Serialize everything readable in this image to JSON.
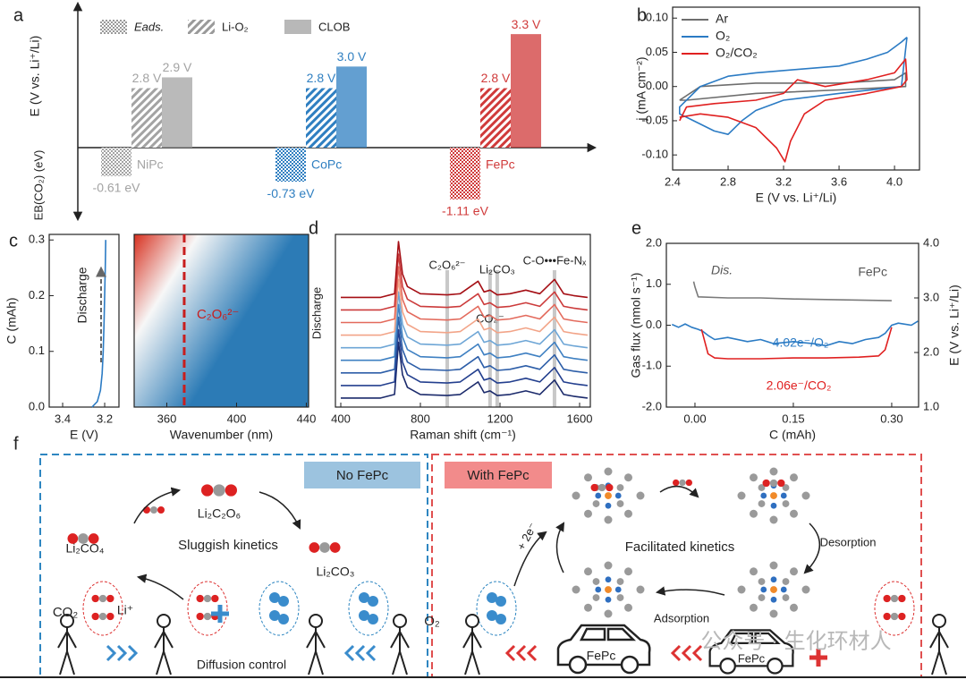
{
  "chart_data": [
    {
      "label": "a",
      "type": "bar",
      "categories": [
        "NiPc",
        "CoPc",
        "FePc"
      ],
      "colors": [
        "#a3a3a3",
        "#2f7fc1",
        "#d03a3a"
      ],
      "series": [
        {
          "name": "Eads.",
          "pattern": "checker",
          "axis": "y2",
          "values": [
            -0.61,
            -0.73,
            -1.11
          ],
          "value_labels": [
            "-0.61 eV",
            "-0.73 eV",
            "-1.11 eV"
          ]
        },
        {
          "name": "Li-O₂",
          "pattern": "hatch",
          "values": [
            2.8,
            2.8,
            2.8
          ],
          "value_labels": [
            "2.8 V",
            "2.8 V",
            "2.8 V"
          ]
        },
        {
          "name": "CLOB",
          "pattern": "solid",
          "values": [
            2.9,
            3.0,
            3.3
          ],
          "value_labels": [
            "2.9 V",
            "3.0 V",
            "3.3 V"
          ]
        }
      ],
      "ylim": [
        2.25,
        3.45
      ],
      "y2lim": [
        -1.4,
        0
      ],
      "ylabel": "E (V vs. Li⁺/Li)",
      "y2label": "EB(CO₂) (eV)"
    },
    {
      "label": "b",
      "type": "line",
      "legend": "upper left",
      "series": [
        {
          "name": "Ar",
          "color": "#6e6e6e",
          "x": [
            2.45,
            2.6,
            3.0,
            3.6,
            4.0,
            4.08,
            4.08,
            3.6,
            3.0,
            2.5,
            2.45
          ],
          "values": [
            -0.02,
            0.0,
            0.005,
            0.005,
            0.01,
            0.02,
            0.0,
            -0.005,
            -0.01,
            -0.02,
            -0.02
          ]
        },
        {
          "name": "O₂",
          "color": "#2b7bc4",
          "x": [
            4.09,
            4.05,
            3.6,
            3.2,
            3.0,
            2.9,
            2.8,
            2.7,
            2.55,
            2.45,
            2.45,
            2.6,
            2.8,
            3.0,
            3.3,
            3.6,
            3.8,
            3.95,
            4.05,
            4.09
          ],
          "values": [
            0.072,
            0.0,
            -0.01,
            -0.02,
            -0.035,
            -0.05,
            -0.07,
            -0.065,
            -0.05,
            -0.04,
            -0.03,
            0.0,
            0.015,
            0.02,
            0.025,
            0.03,
            0.04,
            0.05,
            0.065,
            0.072
          ]
        },
        {
          "name": "O₂/CO₂",
          "color": "#e02020",
          "x": [
            2.45,
            2.5,
            2.7,
            3.0,
            3.2,
            3.3,
            3.5,
            3.8,
            4.0,
            4.08,
            4.09,
            4.05,
            3.8,
            3.5,
            3.35,
            3.25,
            3.21,
            3.15,
            3.0,
            2.8,
            2.6,
            2.45
          ],
          "values": [
            -0.05,
            -0.03,
            -0.025,
            -0.02,
            -0.01,
            0.01,
            0.0,
            0.01,
            0.02,
            0.04,
            0.01,
            0.0,
            -0.01,
            -0.02,
            -0.04,
            -0.08,
            -0.11,
            -0.09,
            -0.06,
            -0.045,
            -0.04,
            -0.045
          ]
        }
      ],
      "xlim": [
        2.4,
        4.18
      ],
      "ylim": [
        -0.122,
        0.116
      ],
      "xticks": [
        2.4,
        2.8,
        3.2,
        3.6,
        {
          "value": 4,
          "label": "4.0"
        }
      ],
      "yticks": [
        {
          "value": -0.1,
          "label": "-0.10"
        },
        {
          "value": -0.05,
          "label": "-0.05"
        },
        {
          "value": 0,
          "label": "0.00"
        },
        {
          "value": 0.05,
          "label": "0.05"
        },
        {
          "value": 0.1,
          "label": "0.10"
        }
      ],
      "xlabel": "E (V vs. Li⁺/Li)",
      "ylabel": "j (mA cm⁻²)"
    },
    {
      "label": "c",
      "type": "line",
      "series": [
        {
          "color": "#2b7bc4",
          "x": [
            3.26,
            3.235,
            3.22,
            3.212,
            3.207,
            3.203,
            3.2,
            3.197,
            3.195
          ],
          "values": [
            0,
            0.01,
            0.03,
            0.06,
            0.1,
            0.15,
            0.2,
            0.25,
            0.3
          ]
        }
      ],
      "xlim": [
        3.464,
        3.132
      ],
      "ylim": [
        0,
        0.31
      ],
      "xticks": [
        3.4,
        3.2
      ],
      "yticks": [
        {
          "value": 0,
          "label": "0.0"
        },
        0.1,
        0.2,
        0.3
      ],
      "xlabel": "E (V)",
      "ylabel": "C (mAh)",
      "annotations": [
        {
          "text": "Discharge",
          "color": "#222222"
        }
      ]
    },
    {
      "type": "heatmap",
      "colors": [
        "#d7301f",
        "#f7f7f7",
        "#2c7bb6"
      ],
      "xlim": [
        341.3,
        441.3
      ],
      "xticks": [
        360,
        400,
        440
      ],
      "xlabel": "Wavenumber (nm)",
      "marker": 370,
      "annotation": "C₂O₆²⁻"
    },
    {
      "label": "d",
      "type": "line",
      "x": [
        400,
        600,
        670,
        690,
        710,
        735,
        800,
        935,
        1000,
        1090,
        1120,
        1150,
        1186,
        1250,
        1330,
        1400,
        1474,
        1520,
        1570,
        1640
      ],
      "series": [
        {
          "color": "#1b2a6b",
          "values": [
            0.05,
            0.05,
            0.15,
            1.6,
            0.7,
            0.35,
            0.15,
            0.12,
            0.15,
            0.5,
            0.2,
            0.25,
            0.12,
            0.15,
            0.25,
            0.15,
            0.55,
            0.15,
            0.1,
            0.05
          ]
        },
        {
          "color": "#233f8e",
          "values": [
            0.4,
            0.4,
            0.5,
            1.95,
            1.05,
            0.7,
            0.5,
            0.47,
            0.5,
            0.85,
            0.55,
            0.6,
            0.47,
            0.5,
            0.6,
            0.5,
            0.9,
            0.5,
            0.45,
            0.4
          ]
        },
        {
          "color": "#2d5ea8",
          "values": [
            0.75,
            0.75,
            0.85,
            2.3,
            1.4,
            1.05,
            0.85,
            0.82,
            0.85,
            1.2,
            0.9,
            0.95,
            0.82,
            0.85,
            0.95,
            0.85,
            1.25,
            0.85,
            0.8,
            0.75
          ]
        },
        {
          "color": "#3f80c2",
          "values": [
            1.1,
            1.1,
            1.2,
            2.65,
            1.75,
            1.4,
            1.2,
            1.17,
            1.2,
            1.55,
            1.25,
            1.3,
            1.17,
            1.2,
            1.3,
            1.2,
            1.6,
            1.2,
            1.15,
            1.1
          ]
        },
        {
          "color": "#6ea6d6",
          "values": [
            1.45,
            1.45,
            1.55,
            3.0,
            2.1,
            1.75,
            1.55,
            1.52,
            1.55,
            1.9,
            1.6,
            1.65,
            1.52,
            1.55,
            1.65,
            1.55,
            1.95,
            1.55,
            1.5,
            1.45
          ]
        },
        {
          "color": "#f2a488",
          "values": [
            1.8,
            1.8,
            1.9,
            3.35,
            2.45,
            2.1,
            1.9,
            1.87,
            1.9,
            2.25,
            1.95,
            2.0,
            1.87,
            1.9,
            2.0,
            1.9,
            2.3,
            1.9,
            1.85,
            1.8
          ]
        },
        {
          "color": "#e36a5c",
          "values": [
            2.15,
            2.15,
            2.25,
            3.7,
            2.8,
            2.45,
            2.25,
            2.22,
            2.25,
            2.6,
            2.3,
            2.35,
            2.22,
            2.25,
            2.35,
            2.25,
            2.65,
            2.25,
            2.2,
            2.15
          ]
        },
        {
          "color": "#cc3b3b",
          "values": [
            2.5,
            2.5,
            2.6,
            4.05,
            3.15,
            2.8,
            2.6,
            2.57,
            2.6,
            2.95,
            2.65,
            2.7,
            2.57,
            2.6,
            2.7,
            2.6,
            3.0,
            2.6,
            2.55,
            2.5
          ]
        },
        {
          "color": "#a50f15",
          "values": [
            2.85,
            2.85,
            2.95,
            4.4,
            3.5,
            3.15,
            2.95,
            2.92,
            2.95,
            3.3,
            3.0,
            3.05,
            2.92,
            2.95,
            3.05,
            2.95,
            3.35,
            2.95,
            2.9,
            2.85
          ]
        }
      ],
      "xlim": [
        373,
        1654
      ],
      "ylim": [
        -0.2,
        4.6
      ],
      "xticks": [
        400,
        800,
        1200,
        1600
      ],
      "references": [
        {
          "value": 935,
          "label": "C₂O₆²⁻"
        },
        {
          "value": 1150,
          "label": "CO₄⁻"
        },
        {
          "value": 1186,
          "label": "Li₂CO₃"
        },
        {
          "value": 1474,
          "label": "C-O•••Fe-Nₓ"
        }
      ],
      "xlabel": "Raman shift (cm⁻¹)",
      "ylabel": "Discharge"
    },
    {
      "label": "e",
      "type": "line",
      "series": [
        {
          "color": "#2b7bc4",
          "x": [
            -0.035,
            -0.025,
            -0.015,
            -0.005,
            0.005,
            0.012,
            0.02,
            0.03,
            0.05,
            0.08,
            0.1,
            0.12,
            0.15,
            0.18,
            0.2,
            0.22,
            0.24,
            0.26,
            0.28,
            0.29,
            0.3,
            0.31,
            0.33,
            0.34
          ],
          "values": [
            0.02,
            -0.05,
            0.03,
            -0.05,
            -0.1,
            -0.15,
            -0.25,
            -0.35,
            -0.3,
            -0.4,
            -0.35,
            -0.45,
            -0.4,
            -0.45,
            -0.5,
            -0.4,
            -0.45,
            -0.35,
            -0.3,
            -0.2,
            0.0,
            0.05,
            0.0,
            0.1
          ]
        },
        {
          "color": "#e02020",
          "x": [
            0.01,
            0.02,
            0.03,
            0.05,
            0.1,
            0.15,
            0.2,
            0.25,
            0.28,
            0.29,
            0.3
          ],
          "values": [
            -0.1,
            -0.7,
            -0.8,
            -0.82,
            -0.82,
            -0.8,
            -0.8,
            -0.78,
            -0.75,
            -0.6,
            -0.05
          ]
        },
        {
          "color": "#7a7a7a",
          "axis": "y2",
          "x": [
            -0.002,
            0,
            0.005,
            0.05,
            0.1,
            0.15,
            0.2,
            0.25,
            0.3
          ],
          "values": [
            3.3,
            3.2,
            3.02,
            3.0,
            3.0,
            2.98,
            2.97,
            2.96,
            2.95
          ]
        }
      ],
      "xlim": [
        -0.0436,
        0.341
      ],
      "ylim": [
        -2,
        2
      ],
      "y2lim": [
        1,
        4
      ],
      "xticks": [
        {
          "value": 0,
          "label": "0.00"
        },
        0.15,
        {
          "value": 0.3,
          "label": "0.30"
        }
      ],
      "yticks": [
        {
          "value": -2,
          "label": "-2.0"
        },
        {
          "value": -1,
          "label": "-1.0"
        },
        {
          "value": 0,
          "label": "0.0"
        },
        {
          "value": 1,
          "label": "1.0"
        },
        {
          "value": 2,
          "label": "2.0"
        }
      ],
      "y2ticks": [
        {
          "value": 1,
          "label": "1.0"
        },
        {
          "value": 2,
          "label": "2.0"
        },
        {
          "value": 3,
          "label": "3.0"
        },
        {
          "value": 4,
          "label": "4.0"
        }
      ],
      "xlabel": "C (mAh)",
      "ylabel": "Gas flux (nmol s⁻¹)",
      "y2label": "E (V vs. Li⁺/Li)",
      "annotations": [
        {
          "text": "Dis.",
          "color": "#555555"
        },
        {
          "text": "FePc",
          "color": "#555555"
        },
        {
          "text": "4.02e⁻/O₂",
          "color": "#2b7bc4"
        },
        {
          "text": "2.06e⁻/CO₂",
          "color": "#e02020"
        }
      ]
    }
  ],
  "diagram": {
    "label": "f",
    "left": {
      "title": "No FePc",
      "species": [
        "Li₂C₂O₆",
        "Li₂CO₄",
        "Li₂CO₃"
      ],
      "process": "Sluggish kinetics",
      "gas": "CO₂",
      "ion": "Li⁺",
      "footer": "Diffusion control"
    },
    "right": {
      "title": "With FePc",
      "gas": "O₂",
      "electrons": "+ 2e⁻",
      "process": "Facilitated kinetics",
      "steps": [
        "Desorption",
        "Adsorption"
      ],
      "cars": [
        "FePc",
        "FePc"
      ]
    },
    "watermark": "公众号 · 生化环材人"
  }
}
